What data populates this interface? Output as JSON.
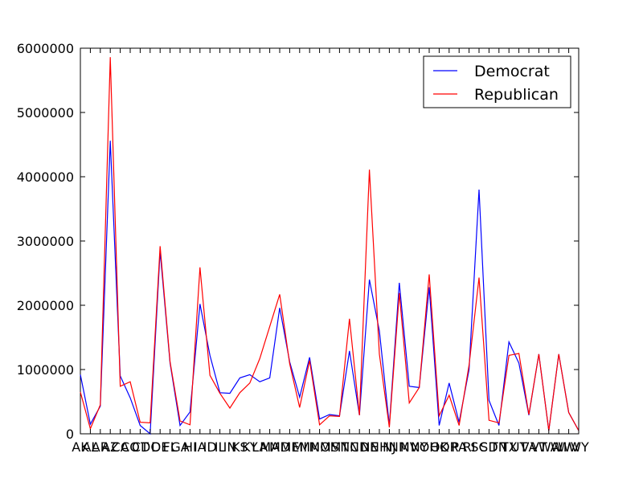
{
  "chart_data": {
    "type": "line",
    "title": "",
    "xlabel": "",
    "ylabel": "",
    "ylim": [
      0,
      6000000
    ],
    "yticks": [
      0,
      1000000,
      2000000,
      3000000,
      4000000,
      5000000,
      6000000
    ],
    "grid": false,
    "legend_position": "top-right",
    "categories": [
      "AK",
      "AL",
      "AR",
      "AZ",
      "CA",
      "CO",
      "CT",
      "DC",
      "DE",
      "FL",
      "GA",
      "HI",
      "IA",
      "ID",
      "IL",
      "IN",
      "KS",
      "KY",
      "LA",
      "MA",
      "MD",
      "ME",
      "MI",
      "MN",
      "MO",
      "MS",
      "MT",
      "NC",
      "ND",
      "NE",
      "NH",
      "NJ",
      "NM",
      "NV",
      "NY",
      "OH",
      "OK",
      "OR",
      "PA",
      "RI",
      "SC",
      "SD",
      "TN",
      "TX",
      "UT",
      "VA",
      "VT",
      "WA",
      "WI",
      "WV",
      "WY"
    ],
    "series": [
      {
        "name": "Democrat",
        "color": "#0000ff",
        "values": [
          920000,
          150000,
          430000,
          4560000,
          900000,
          560000,
          130000,
          0,
          2840000,
          1100000,
          130000,
          340000,
          2020000,
          1220000,
          640000,
          630000,
          870000,
          920000,
          810000,
          870000,
          1960000,
          1120000,
          570000,
          1190000,
          230000,
          300000,
          280000,
          1290000,
          290000,
          2400000,
          1600000,
          130000,
          2350000,
          740000,
          720000,
          2280000,
          130000,
          790000,
          180000,
          1000000,
          3800000,
          520000,
          130000,
          1430000,
          1100000,
          290000,
          1240000,
          50000,
          1240000,
          330000,
          50000
        ]
      },
      {
        "name": "Republican",
        "color": "#ff0000",
        "values": [
          650000,
          80000,
          450000,
          5860000,
          740000,
          810000,
          180000,
          170000,
          2920000,
          1120000,
          200000,
          140000,
          2590000,
          910000,
          630000,
          400000,
          640000,
          790000,
          1170000,
          1670000,
          2170000,
          1090000,
          410000,
          1140000,
          140000,
          280000,
          270000,
          1790000,
          290000,
          4110000,
          1240000,
          100000,
          2190000,
          480000,
          720000,
          2480000,
          280000,
          600000,
          130000,
          1070000,
          2430000,
          210000,
          170000,
          1220000,
          1250000,
          300000,
          1240000,
          50000,
          1240000,
          330000,
          50000
        ]
      }
    ]
  }
}
